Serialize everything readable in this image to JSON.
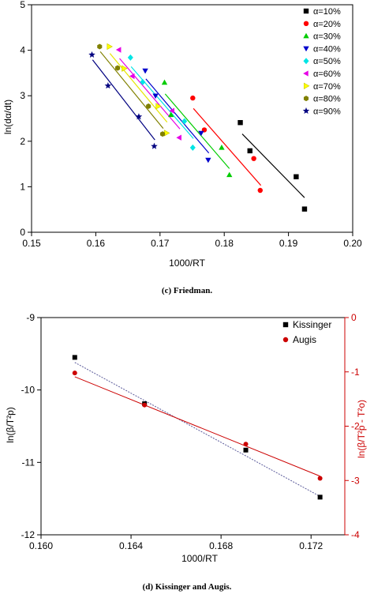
{
  "captions": {
    "c": "(c) Friedman.",
    "d": "(d) Kissinger and Augis."
  },
  "chart_data": [
    {
      "type": "scatter",
      "xlabel": "1000/RT",
      "ylabel": "ln(dα/dt)",
      "xlim": [
        0.15,
        0.2
      ],
      "ylim": [
        0,
        5
      ],
      "xticks": [
        "0.15",
        "0.16",
        "0.17",
        "0.18",
        "0.19",
        "0.20"
      ],
      "yticks": [
        "0",
        "1",
        "2",
        "3",
        "4",
        "5"
      ],
      "legend_position": "top-right",
      "series": [
        {
          "name": "α=10%",
          "color": "#000000",
          "marker": "square",
          "points": [
            [
              0.1825,
              2.41
            ],
            [
              0.184,
              1.79
            ],
            [
              0.1912,
              1.22
            ],
            [
              0.1925,
              0.51
            ]
          ],
          "fit": [
            [
              0.1828,
              2.16
            ],
            [
              0.1925,
              0.76
            ]
          ]
        },
        {
          "name": "α=20%",
          "color": "#ff0000",
          "marker": "circle",
          "points": [
            [
              0.1751,
              2.95
            ],
            [
              0.1769,
              2.25
            ],
            [
              0.1846,
              1.62
            ],
            [
              0.1856,
              0.92
            ]
          ],
          "fit": [
            [
              0.1752,
              2.72
            ],
            [
              0.1857,
              1.03
            ]
          ]
        },
        {
          "name": "α=30%",
          "color": "#00cc00",
          "marker": "triangle-up",
          "points": [
            [
              0.1707,
              3.29
            ],
            [
              0.1717,
              2.58
            ],
            [
              0.1796,
              1.86
            ],
            [
              0.1808,
              1.26
            ]
          ],
          "fit": [
            [
              0.1708,
              3.04
            ],
            [
              0.1808,
              1.4
            ]
          ]
        },
        {
          "name": "α=40%",
          "color": "#0000cc",
          "marker": "triangle-down",
          "points": [
            [
              0.1677,
              3.55
            ],
            [
              0.1693,
              3.0
            ],
            [
              0.1764,
              2.18
            ],
            [
              0.1775,
              1.59
            ]
          ],
          "fit": [
            [
              0.1678,
              3.37
            ],
            [
              0.1776,
              1.74
            ]
          ]
        },
        {
          "name": "α=50%",
          "color": "#00e5e5",
          "marker": "diamond",
          "points": [
            [
              0.1654,
              3.84
            ],
            [
              0.1673,
              3.3
            ],
            [
              0.1738,
              2.44
            ],
            [
              0.1751,
              1.86
            ]
          ],
          "fit": [
            [
              0.1655,
              3.64
            ],
            [
              0.1752,
              2.06
            ]
          ]
        },
        {
          "name": "α=60%",
          "color": "#e600e6",
          "marker": "triangle-left",
          "points": [
            [
              0.1636,
              4.01
            ],
            [
              0.1657,
              3.43
            ],
            [
              0.1719,
              2.67
            ],
            [
              0.173,
              2.08
            ]
          ],
          "fit": [
            [
              0.1637,
              3.82
            ],
            [
              0.1731,
              2.27
            ]
          ]
        },
        {
          "name": "α=70%",
          "color": "#ffff00",
          "marker": "triangle-right",
          "points": [
            [
              0.1621,
              4.08
            ],
            [
              0.1644,
              3.6
            ],
            [
              0.1697,
              2.77
            ],
            [
              0.171,
              2.18
            ]
          ],
          "fit": [
            [
              0.1622,
              3.93
            ],
            [
              0.1711,
              2.42
            ]
          ]
        },
        {
          "name": "α=80%",
          "color": "#808000",
          "marker": "hexagon",
          "points": [
            [
              0.1606,
              4.08
            ],
            [
              0.1634,
              3.61
            ],
            [
              0.1682,
              2.77
            ],
            [
              0.1704,
              2.16
            ]
          ],
          "fit": [
            [
              0.1607,
              3.97
            ],
            [
              0.1705,
              2.28
            ]
          ]
        },
        {
          "name": "α=90%",
          "color": "#000080",
          "marker": "star",
          "points": [
            [
              0.1594,
              3.9
            ],
            [
              0.1619,
              3.22
            ],
            [
              0.1667,
              2.54
            ],
            [
              0.1691,
              1.89
            ]
          ],
          "fit": [
            [
              0.1595,
              3.79
            ],
            [
              0.1692,
              2.03
            ]
          ]
        }
      ]
    },
    {
      "type": "scatter",
      "xlabel": "1000/RT",
      "ylabel_left": "ln(β/T²p)",
      "ylabel_right": "ln(β/T²p - T²o)",
      "xlim": [
        0.16,
        0.1735
      ],
      "ylim_left": [
        -12,
        -9
      ],
      "ylim_right": [
        -4,
        0
      ],
      "xticks": [
        {
          "value": 0.16,
          "label": "0.160"
        },
        {
          "value": 0.164,
          "label": "0.164"
        },
        {
          "value": 0.168,
          "label": "0.168"
        },
        {
          "value": 0.172,
          "label": "0.172"
        }
      ],
      "yticks_left": [
        "-12",
        "-11",
        "-10",
        "-9"
      ],
      "yticks_right": [
        "-4",
        "-3",
        "-2",
        "-1",
        "0"
      ],
      "left_color": "#000000",
      "right_color": "#cc0000",
      "legend_position": "top-right",
      "series": [
        {
          "name": "Kissinger",
          "axis": "left",
          "color": "#000000",
          "marker": "square",
          "points": [
            [
              0.1615,
              -9.55
            ],
            [
              0.1646,
              -10.19
            ],
            [
              0.1691,
              -10.83
            ],
            [
              0.1724,
              -11.48
            ]
          ],
          "fit": [
            [
              0.1615,
              -9.62
            ],
            [
              0.1724,
              -11.47
            ]
          ]
        },
        {
          "name": "Augis",
          "axis": "right",
          "color": "#cc0000",
          "marker": "circle",
          "points": [
            [
              0.1615,
              -1.02
            ],
            [
              0.1646,
              -1.61
            ],
            [
              0.1691,
              -2.33
            ],
            [
              0.1724,
              -2.96
            ]
          ],
          "fit": [
            [
              0.1615,
              -1.09
            ],
            [
              0.1724,
              -2.92
            ]
          ]
        }
      ]
    }
  ]
}
